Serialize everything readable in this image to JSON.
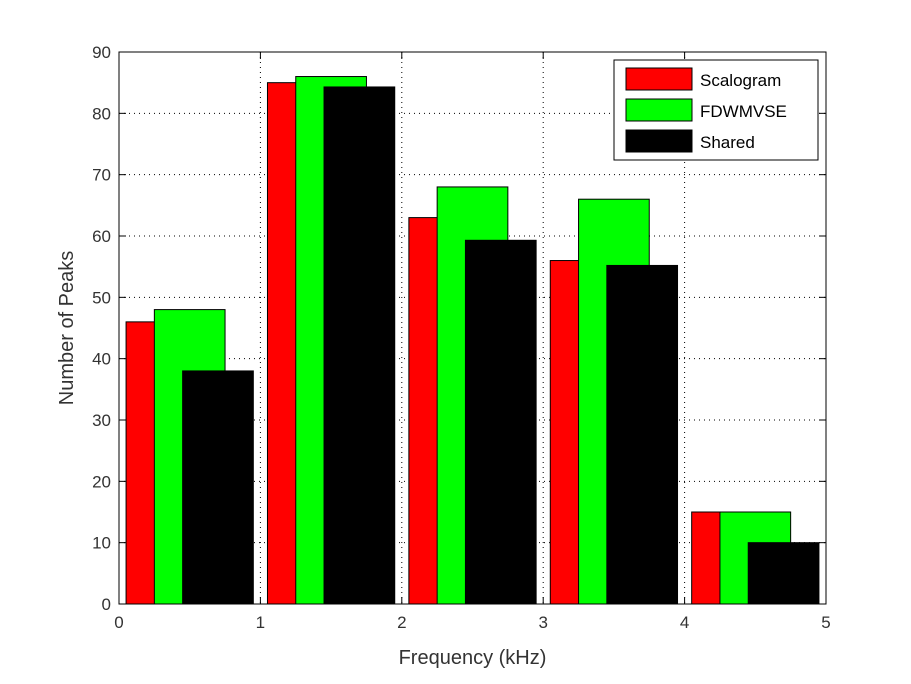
{
  "chart_data": {
    "type": "bar",
    "categories": [
      "0-1",
      "1-2",
      "2-3",
      "3-4",
      "4-5"
    ],
    "series": [
      {
        "name": "Scalogram",
        "color": "#ff0000",
        "values": [
          46,
          85,
          63,
          56,
          15
        ]
      },
      {
        "name": "FDWMVSE",
        "color": "#00ff00",
        "values": [
          48,
          86,
          68,
          66,
          15
        ]
      },
      {
        "name": "Shared",
        "color": "#000000",
        "values": [
          38,
          84.3,
          59.3,
          55.2,
          10
        ]
      }
    ],
    "title": "",
    "xlabel": "Frequency (kHz)",
    "ylabel": "Number of Peaks",
    "xlim": [
      0,
      5
    ],
    "ylim": [
      0,
      90
    ],
    "xticks": [
      "0",
      "1",
      "2",
      "3",
      "4",
      "5"
    ],
    "yticks": [
      "0",
      "10",
      "20",
      "30",
      "40",
      "50",
      "60",
      "70",
      "80",
      "90"
    ],
    "grid": true,
    "legend": {
      "position": "top-right",
      "entries": [
        "Scalogram",
        "FDWMVSE",
        "Shared"
      ]
    }
  }
}
